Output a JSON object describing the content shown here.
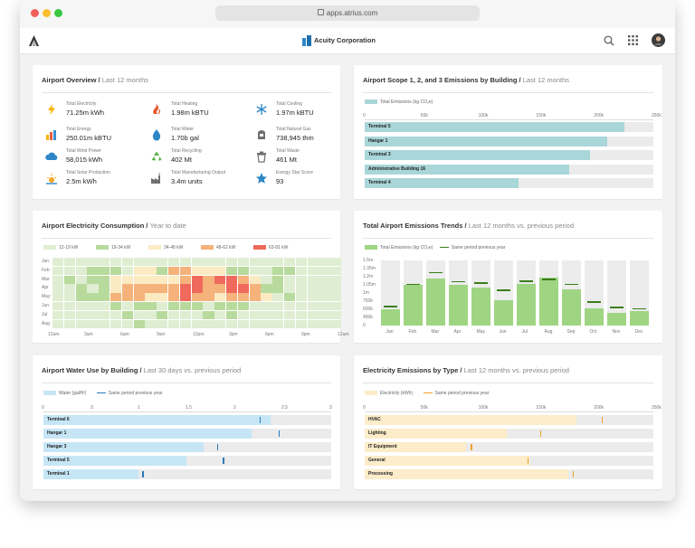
{
  "browser": {
    "url": "apps.atrius.com"
  },
  "header": {
    "company": "Acuity Corporation"
  },
  "overview": {
    "title": "Airport Overview",
    "subtitle": "Last 12 months",
    "metrics": [
      {
        "label": "Total Electricity",
        "value": "71.25m kWh",
        "icon": "lightning-icon",
        "color": "#f5b400"
      },
      {
        "label": "Total Heating",
        "value": "1.98m kBTU",
        "icon": "heating-icon",
        "color": "#e4572e"
      },
      {
        "label": "Total Cooling",
        "value": "1.97m kBTU",
        "icon": "snowflake-icon",
        "color": "#2d87c7"
      },
      {
        "label": "Total Energy",
        "value": "250.01m kBTU",
        "icon": "energy-bars-icon",
        "color": "#e85d3a"
      },
      {
        "label": "Total Water",
        "value": "1.70b gal",
        "icon": "water-drop-icon",
        "color": "#2d87c7"
      },
      {
        "label": "Total Natural Gas",
        "value": "738,945 thm",
        "icon": "gas-icon",
        "color": "#6f6f6f"
      },
      {
        "label": "Total Wind Power",
        "value": "58,015 kWh",
        "icon": "cloud-icon",
        "color": "#2d87c7"
      },
      {
        "label": "Total Recycling",
        "value": "402 Mt",
        "icon": "recycling-icon",
        "color": "#5bb14a"
      },
      {
        "label": "Total Waste",
        "value": "461 Mt",
        "icon": "trash-icon",
        "color": "#6f6f6f"
      },
      {
        "label": "Total Solar Production",
        "value": "2.5m kWh",
        "icon": "sun-icon",
        "color": "#f5a623"
      },
      {
        "label": "Total Manufacturing Output",
        "value": "3.4m units",
        "icon": "factory-icon",
        "color": "#6f6f6f"
      },
      {
        "label": "Energy Star Score",
        "value": "93",
        "icon": "star-icon",
        "color": "#2d87c7"
      }
    ]
  },
  "scope": {
    "title": "Airport Scope 1, 2, and 3 Emissions by Building",
    "subtitle": "Last 12 months",
    "legend": "Total Emissions (kg CO₂e)",
    "ticks": [
      "0",
      "50k",
      "100k",
      "150k",
      "200k",
      "250k"
    ],
    "bars": [
      {
        "name": "Terminal 5",
        "value": 225000
      },
      {
        "name": "Hangar 1",
        "value": 210000
      },
      {
        "name": "Terminal 3",
        "value": 195000
      },
      {
        "name": "Administrative Building 16",
        "value": 177000
      },
      {
        "name": "Terminal 4",
        "value": 133000
      }
    ],
    "max": 250000,
    "color": "#a9d6d9"
  },
  "electricity": {
    "title": "Airport Electricity Consumption",
    "subtitle": "Year to date",
    "legend": [
      {
        "label": "12-19 kW",
        "color": "#dfeed2"
      },
      {
        "label": "19-34 kW",
        "color": "#b8da9c"
      },
      {
        "label": "34-48 kW",
        "color": "#fbeac2"
      },
      {
        "label": "48-62 kW",
        "color": "#f5b27a"
      },
      {
        "label": "63-81 kW",
        "color": "#ef6a5c"
      }
    ],
    "months": [
      "Jan",
      "Feb",
      "Mar",
      "Apr",
      "May",
      "Jun",
      "Jul",
      "Aug"
    ],
    "hours": [
      "12am",
      "3am",
      "6am",
      "9am",
      "12pm",
      "3pm",
      "6pm",
      "9pm",
      "12am"
    ],
    "grid": [
      [
        0,
        0,
        0,
        0,
        0,
        0,
        0,
        0,
        0,
        0,
        0,
        0,
        0,
        0,
        0,
        0,
        0,
        0,
        0,
        0,
        0,
        0,
        0,
        0,
        0
      ],
      [
        0,
        0,
        0,
        1,
        1,
        1,
        0,
        2,
        2,
        1,
        3,
        3,
        2,
        2,
        2,
        1,
        1,
        0,
        0,
        1,
        1,
        0,
        0,
        0,
        0
      ],
      [
        0,
        1,
        0,
        1,
        1,
        2,
        2,
        2,
        2,
        2,
        2,
        3,
        4,
        3,
        4,
        4,
        3,
        2,
        0,
        1,
        0,
        0,
        0,
        0,
        0
      ],
      [
        0,
        0,
        1,
        0,
        1,
        2,
        3,
        3,
        3,
        3,
        3,
        4,
        4,
        3,
        3,
        4,
        4,
        3,
        1,
        1,
        0,
        0,
        0,
        0,
        0
      ],
      [
        0,
        0,
        1,
        1,
        1,
        3,
        3,
        3,
        2,
        2,
        3,
        4,
        3,
        3,
        2,
        3,
        3,
        3,
        2,
        0,
        1,
        0,
        0,
        0,
        0
      ],
      [
        0,
        0,
        0,
        0,
        0,
        1,
        0,
        1,
        1,
        0,
        1,
        1,
        1,
        0,
        1,
        1,
        1,
        0,
        0,
        0,
        0,
        0,
        0,
        0,
        0
      ],
      [
        0,
        0,
        0,
        0,
        0,
        0,
        1,
        0,
        0,
        1,
        0,
        0,
        0,
        1,
        0,
        1,
        0,
        0,
        0,
        0,
        0,
        0,
        0,
        0,
        0
      ],
      [
        0,
        0,
        0,
        0,
        0,
        0,
        0,
        1,
        0,
        0,
        0,
        0,
        0,
        0,
        0,
        0,
        0,
        0,
        0,
        0,
        0,
        0,
        0,
        0,
        0
      ]
    ]
  },
  "trends": {
    "title": "Total Airport Emissions Trends",
    "subtitle": "Last 12 months vs. previous period",
    "legend_total": "Total Emissions (kg CO₂e)",
    "legend_prev": "Same period previous year",
    "yticks": [
      "1.5m",
      "1.35m",
      "1.2m",
      "1.05m",
      "1m",
      "750k",
      "600k",
      "450k",
      "0"
    ],
    "months": [
      "Jan",
      "Feb",
      "Mar",
      "Apr",
      "May",
      "Jun",
      "Jul",
      "Aug",
      "Sep",
      "Oct",
      "Nov",
      "Dec"
    ],
    "values": [
      0.25,
      0.62,
      0.72,
      0.63,
      0.59,
      0.39,
      0.64,
      0.74,
      0.55,
      0.27,
      0.2,
      0.22
    ],
    "previous": [
      0.28,
      0.62,
      0.8,
      0.66,
      0.64,
      0.53,
      0.67,
      0.7,
      0.62,
      0.35,
      0.27,
      0.25
    ]
  },
  "water": {
    "title": "Airport Water Use by Building",
    "subtitle": "Last 30 days vs. previous period",
    "legend": "Water (gal/ft²)",
    "legend_prev": "Same period previous year",
    "ticks": [
      "0",
      ".5",
      "1",
      "1.5",
      "2",
      "2.5",
      "3"
    ],
    "max": 3,
    "bars": [
      {
        "name": "Terminal 6",
        "value": 2.37,
        "previous": 2.25
      },
      {
        "name": "Hangar 1",
        "value": 2.17,
        "previous": 2.45
      },
      {
        "name": "Hangar 3",
        "value": 1.67,
        "previous": 1.81
      },
      {
        "name": "Terminal 5",
        "value": 1.49,
        "previous": 1.87
      },
      {
        "name": "Terminal 1",
        "value": 0.99,
        "previous": 1.03
      }
    ],
    "color": "#c6e6f6",
    "marker_color": "#2a7ab8"
  },
  "types": {
    "title": "Electricity Emissions by Type",
    "subtitle": "Last 12 months vs. previous period",
    "legend": "Electricity (kWh)",
    "legend_prev": "Same period previous year",
    "ticks": [
      "0",
      "50k",
      "100k",
      "150k",
      "200k",
      "250k"
    ],
    "max": 250000,
    "bars": [
      {
        "name": "HVAC",
        "value": 183000,
        "previous": 205000
      },
      {
        "name": "Lighting",
        "value": 123000,
        "previous": 152000
      },
      {
        "name": "IT Equipment",
        "value": 88000,
        "previous": 92000
      },
      {
        "name": "General",
        "value": 143000,
        "previous": 141000
      },
      {
        "name": "Processing",
        "value": 176000,
        "previous": 180000
      }
    ],
    "color": "#fcecc9",
    "marker_color": "#f0a030"
  }
}
